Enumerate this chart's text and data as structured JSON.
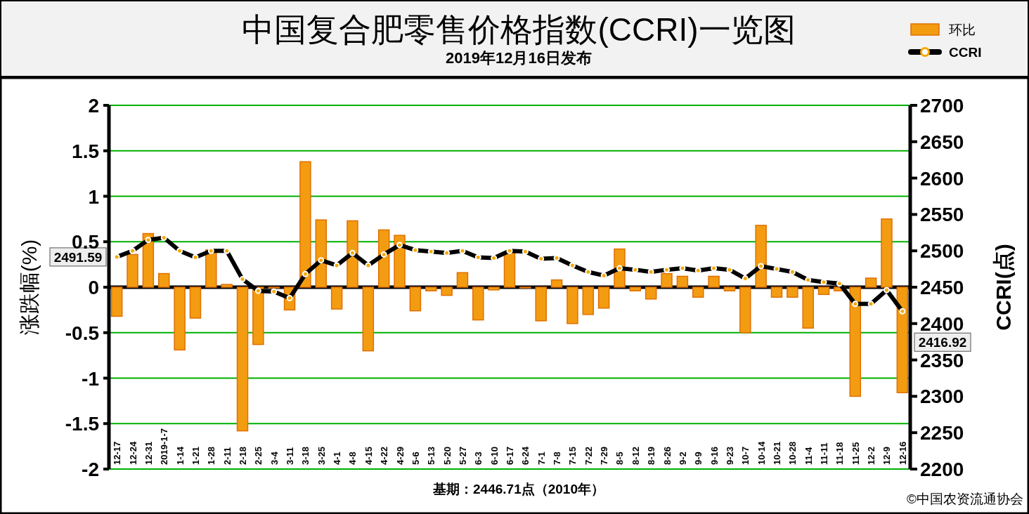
{
  "chart_data": {
    "type": "bar",
    "title": "中国复合肥零售价格指数(CCRI)一览图",
    "subtitle": "2019年12月16日发布",
    "ylabel": "涨跌幅(%)",
    "y2label": "CCRI(点)",
    "categories": [
      "12-17",
      "12-24",
      "12-31",
      "2019-1-7",
      "1-14",
      "1-21",
      "1-28",
      "2-11",
      "2-18",
      "2-25",
      "3-4",
      "3-11",
      "3-18",
      "3-25",
      "4-1",
      "4-8",
      "4-15",
      "4-22",
      "4-29",
      "5-6",
      "5-13",
      "5-20",
      "5-27",
      "6-3",
      "6-10",
      "6-17",
      "6-24",
      "7-1",
      "7-8",
      "7-15",
      "7-22",
      "7-29",
      "8-5",
      "8-12",
      "8-19",
      "8-26",
      "9-2",
      "9-9",
      "9-16",
      "9-23",
      "10-7",
      "10-14",
      "10-21",
      "10-28",
      "11-4",
      "11-11",
      "11-18",
      "11-25",
      "12-2",
      "12-9",
      "12-16"
    ],
    "series": [
      {
        "name": "环比",
        "color": "#f39c12",
        "values": [
          -0.32,
          0.36,
          0.59,
          0.15,
          -0.69,
          -0.34,
          0.41,
          0.03,
          -1.58,
          -0.63,
          0,
          -0.25,
          1.38,
          0.74,
          -0.24,
          0.73,
          -0.7,
          0.63,
          0.57,
          -0.26,
          -0.04,
          -0.09,
          0.16,
          -0.36,
          -0.03,
          0.39,
          0,
          -0.37,
          0.08,
          -0.4,
          -0.3,
          -0.23,
          0.42,
          -0.04,
          -0.13,
          0.15,
          0.12,
          -0.11,
          0.12,
          -0.04,
          -0.5,
          0.68,
          -0.11,
          -0.11,
          -0.45,
          -0.08,
          -0.04,
          -1.2,
          0.1,
          0.75,
          -1.16
        ]
      },
      {
        "name": "CCRI",
        "type": "line",
        "axis": "y2",
        "color": "#000000",
        "marker": "circle",
        "values": [
          2491.59,
          2500,
          2515,
          2518,
          2500,
          2491,
          2500,
          2500,
          2461,
          2445,
          2444,
          2435,
          2468,
          2487,
          2480,
          2497,
          2480,
          2495,
          2508,
          2501,
          2499,
          2497,
          2500,
          2491,
          2490,
          2500,
          2499,
          2489,
          2490,
          2480,
          2471,
          2466,
          2476,
          2474,
          2471,
          2474,
          2476,
          2473,
          2476,
          2474,
          2462,
          2479,
          2475,
          2471,
          2460,
          2457,
          2455,
          2427,
          2427,
          2446,
          2416.92
        ],
        "value_labels": [
          "2491.59",
          null,
          null,
          null,
          null,
          null,
          null,
          null,
          null,
          null,
          null,
          null,
          null,
          null,
          null,
          null,
          null,
          null,
          null,
          null,
          null,
          null,
          null,
          null,
          null,
          null,
          null,
          null,
          null,
          null,
          null,
          null,
          null,
          null,
          null,
          null,
          null,
          null,
          null,
          null,
          null,
          null,
          null,
          null,
          null,
          null,
          null,
          null,
          null,
          null,
          "2416.92"
        ]
      }
    ],
    "ylim": [
      -2,
      2
    ],
    "yticks": [
      2,
      1.5,
      1,
      0.5,
      0,
      -0.5,
      -1,
      -1.5,
      -2
    ],
    "y2lim": [
      2200,
      2700
    ],
    "y2ticks": [
      2700,
      2650,
      2600,
      2550,
      2500,
      2450,
      2400,
      2350,
      2300,
      2250,
      2200
    ],
    "grid": "y",
    "legend": "top right",
    "annotations": [
      "基期：2446.71点（2010年）",
      "©中国农资流通协会"
    ]
  }
}
